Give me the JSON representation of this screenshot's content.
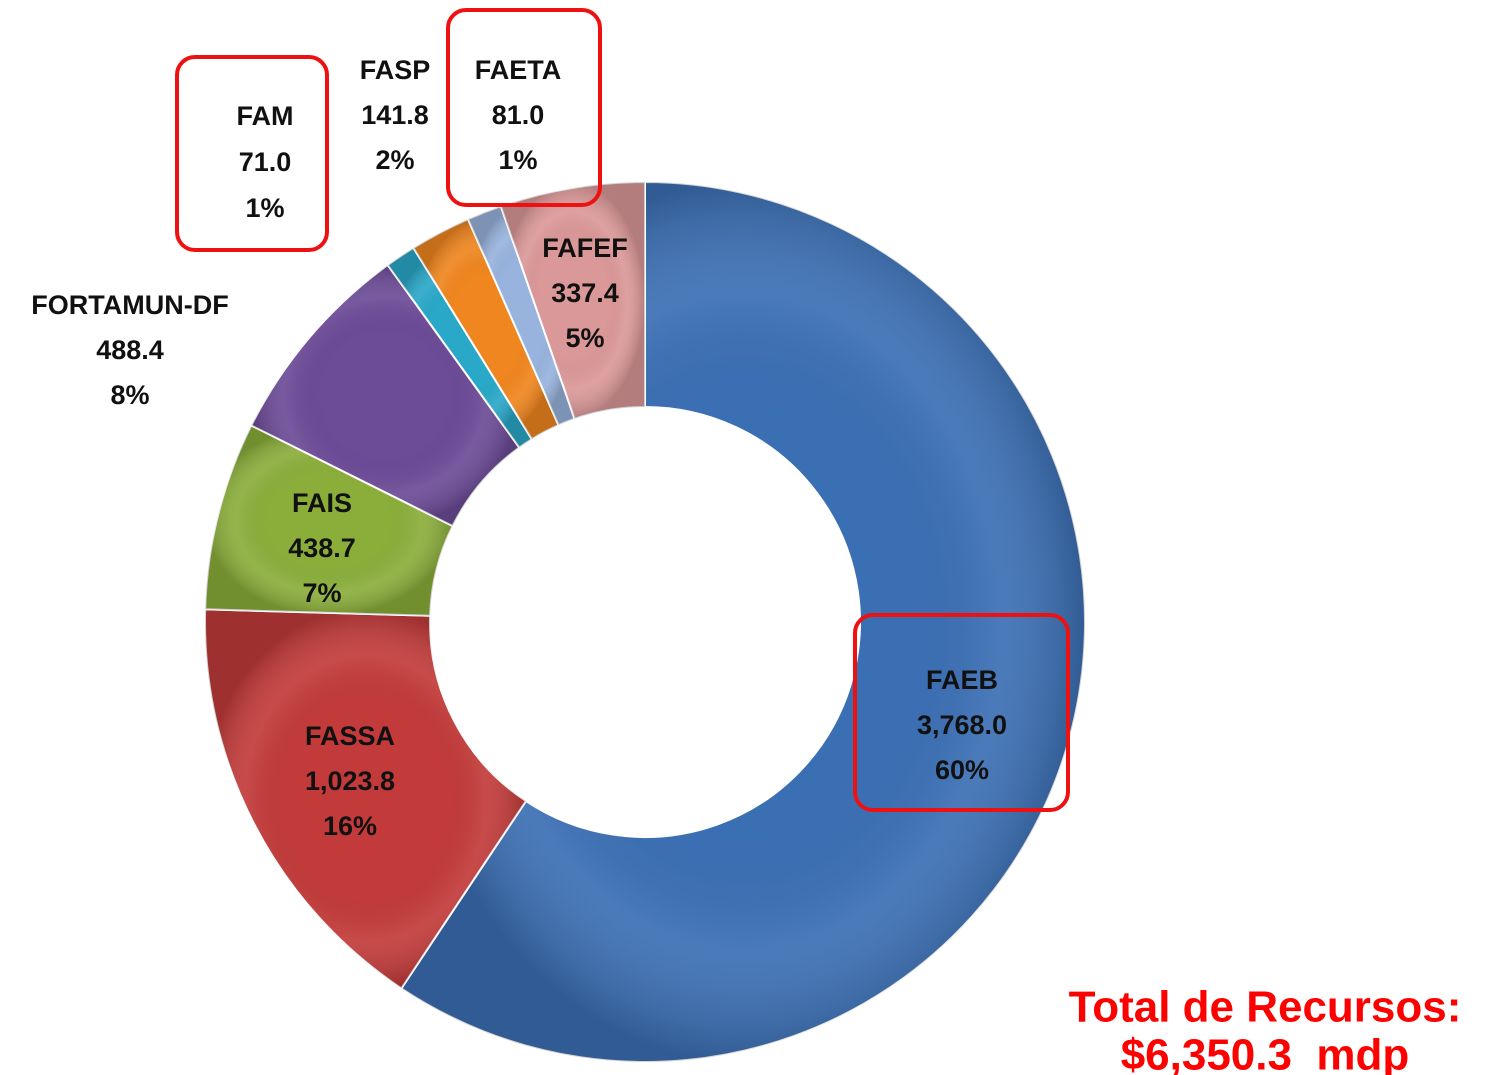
{
  "chart_data": {
    "type": "donut",
    "categories": [
      "FAEB",
      "FASSA",
      "FAIS",
      "FORTAMUN-DF",
      "FAM",
      "FASP",
      "FAETA",
      "FAFEF"
    ],
    "values": [
      3768.0,
      1023.8,
      438.7,
      488.4,
      71.0,
      141.8,
      81.0,
      337.4
    ],
    "value_labels": [
      "3,768.0",
      "1,023.8",
      "438.7",
      "488.4",
      "71.0",
      "141.8",
      "81.0",
      "337.4"
    ],
    "percentages": [
      60,
      16,
      7,
      8,
      1,
      2,
      1,
      5
    ],
    "percentage_labels": [
      "60%",
      "16%",
      "7%",
      "8%",
      "1%",
      "2%",
      "1%",
      "5%"
    ],
    "colors": [
      "#3b6fb4",
      "#c23b3a",
      "#8bae3b",
      "#6c4b97",
      "#2aa8c8",
      "#f0861f",
      "#98b3dd",
      "#db9898"
    ],
    "annotations": [
      "Total de Recursos:",
      "$6,350.3  mdp"
    ]
  }
}
